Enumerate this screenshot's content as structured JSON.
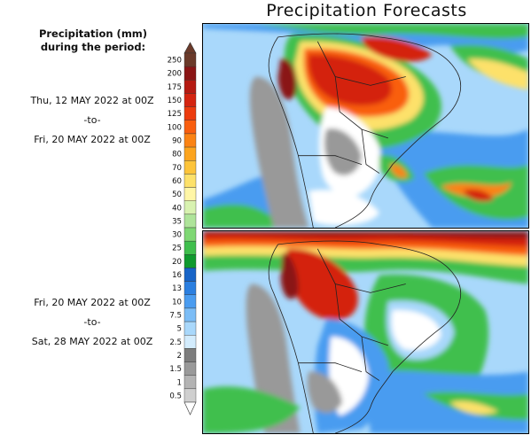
{
  "header": {
    "title": "Precipitation Forecasts"
  },
  "legend": {
    "heading_line1": "Precipitation (mm)",
    "heading_line2": "during the period:",
    "levels": [
      {
        "label": "250",
        "color": "#6b3a2a"
      },
      {
        "label": "200",
        "color": "#8a1515"
      },
      {
        "label": "175",
        "color": "#b51a12"
      },
      {
        "label": "150",
        "color": "#d42410"
      },
      {
        "label": "125",
        "color": "#ec3b0e"
      },
      {
        "label": "100",
        "color": "#f95e0f"
      },
      {
        "label": "90",
        "color": "#fb8314"
      },
      {
        "label": "80",
        "color": "#fca41e"
      },
      {
        "label": "70",
        "color": "#fdc43a"
      },
      {
        "label": "60",
        "color": "#fde16a"
      },
      {
        "label": "50",
        "color": "#fff6a6"
      },
      {
        "label": "40",
        "color": "#d8f2b0"
      },
      {
        "label": "35",
        "color": "#aee49a"
      },
      {
        "label": "30",
        "color": "#7fd874"
      },
      {
        "label": "25",
        "color": "#3fbf4d"
      },
      {
        "label": "20",
        "color": "#0f9a2e"
      },
      {
        "label": "16",
        "color": "#1764c7"
      },
      {
        "label": "13",
        "color": "#2b7fe0"
      },
      {
        "label": "10",
        "color": "#4a9cf0"
      },
      {
        "label": "7.5",
        "color": "#7cbdf6"
      },
      {
        "label": "5",
        "color": "#a9d8fb"
      },
      {
        "label": "2.5",
        "color": "#d3ecfd"
      },
      {
        "label": "2",
        "color": "#7d7d7d"
      },
      {
        "label": "1.5",
        "color": "#999999"
      },
      {
        "label": "1",
        "color": "#b3b3b3"
      },
      {
        "label": "0.5",
        "color": "#cfcfcf"
      }
    ]
  },
  "periods": [
    {
      "start": "Thu, 12 MAY 2022 at 00Z",
      "separator": "-to-",
      "end": "Fri, 20 MAY 2022 at 00Z"
    },
    {
      "start": "Fri, 20 MAY 2022 at 00Z",
      "separator": "-to-",
      "end": "Sat, 28 MAY 2022 at 00Z"
    }
  ],
  "map_colors": {
    "ocean": "#a9d8fb",
    "ocean_mid": "#4a9cf0",
    "dry": "#ffffff",
    "gray": "#999999",
    "green": "#3fbf4d",
    "yellow": "#fde16a",
    "orange": "#f95e0f",
    "red": "#d42410",
    "dark_red": "#8a1515",
    "border": "#222222"
  }
}
